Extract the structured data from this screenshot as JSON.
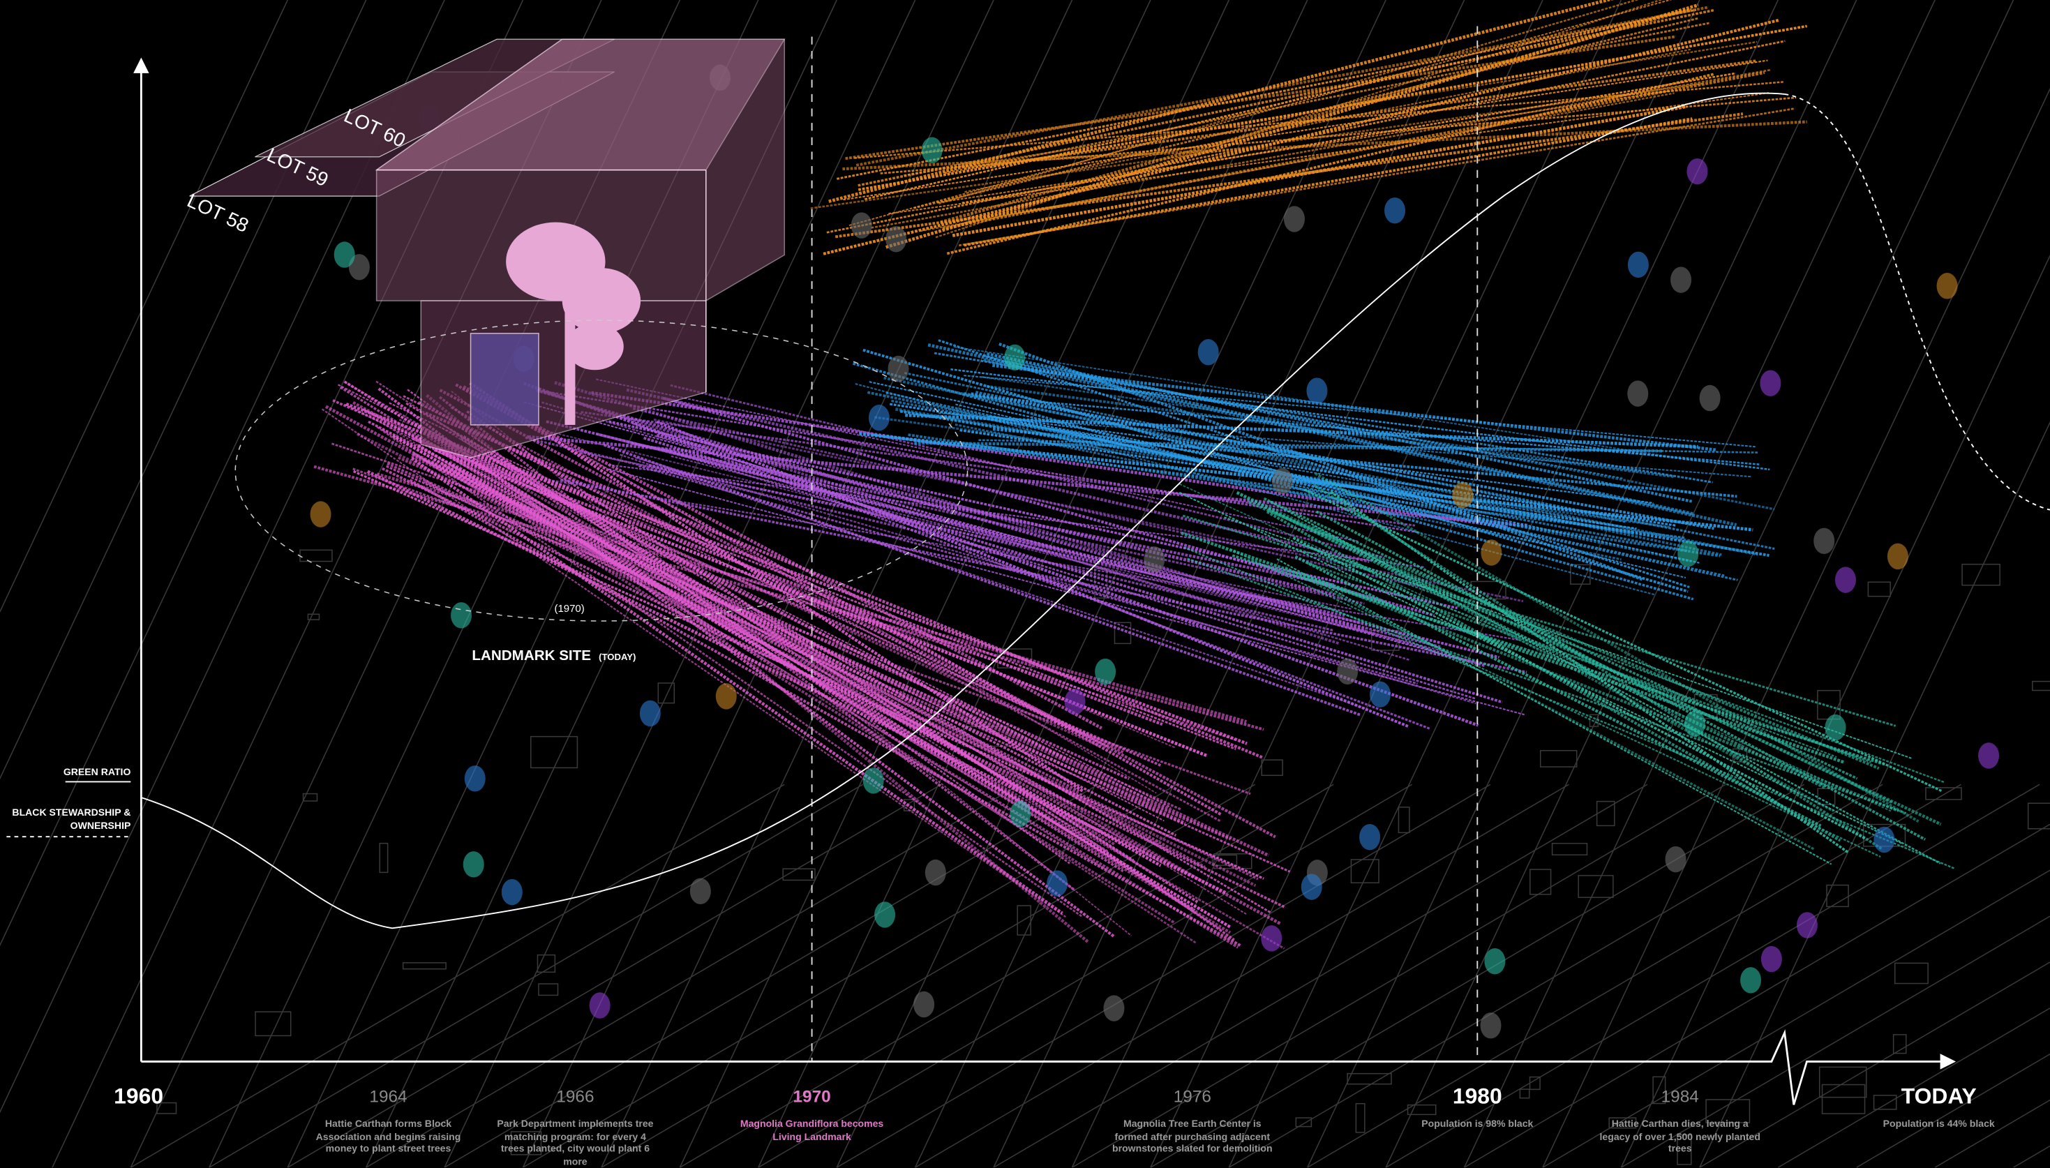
{
  "lots": [
    "LOT 60",
    "LOT 59",
    "LOT 58"
  ],
  "site": {
    "year": "(1970)",
    "name": "LANDMARK SITE",
    "note": "(TODAY)"
  },
  "legend": {
    "green_ratio": "GREEN RATIO",
    "stewardship": "BLACK STEWARDSHIP & OWNERSHIP"
  },
  "timeline": [
    {
      "year": "1960"
    },
    {
      "year": "1964",
      "caption": "Hattie Carthan forms Block Association and begins raising money to plant street trees"
    },
    {
      "year": "1966",
      "caption": "Park Department implements  tree matching program: for every 4 trees planted, city would plant 6 more"
    },
    {
      "year": "1970",
      "caption": "Magnolia Grandiflora becomes Living Landmark"
    },
    {
      "year": "1976",
      "caption": "Magnolia Tree Earth Center is formed after purchasing adjacent brownstones slated for demolition"
    },
    {
      "year": "1980",
      "caption": "Population is 98% black"
    },
    {
      "year": "1984",
      "caption": "Hattie Carthan dies, levaing a legacy of over 1,500 newly planted trees"
    },
    {
      "year": "TODAY",
      "caption": "Population is 44% black"
    }
  ]
}
